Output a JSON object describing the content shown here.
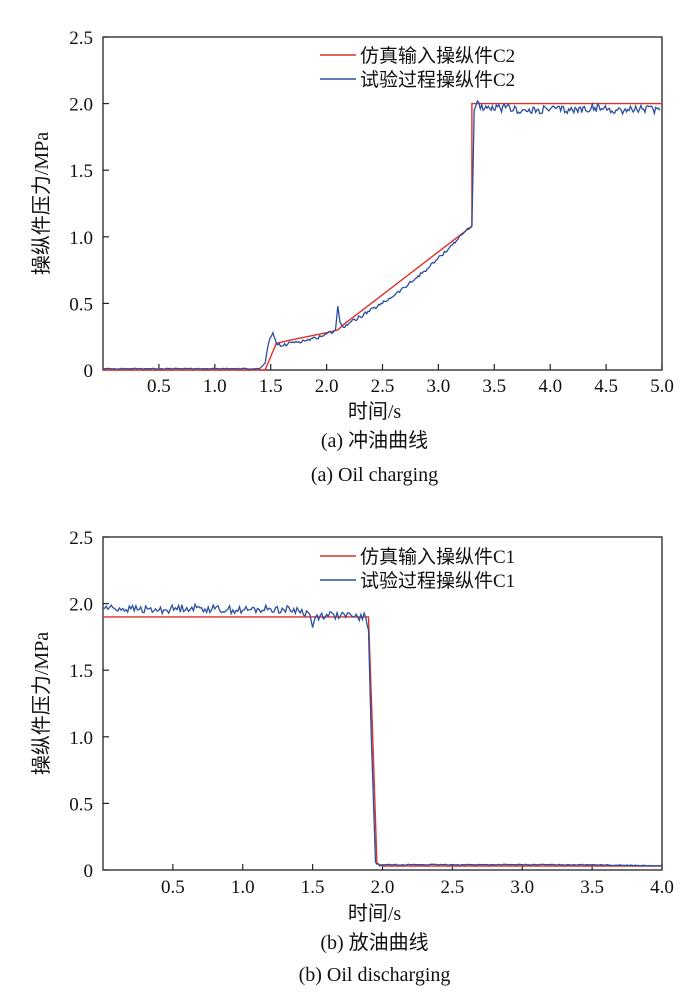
{
  "chart_data": [
    {
      "type": "line",
      "xlabel": "时间/s",
      "ylabel": "操纵件压力/MPa",
      "xlim": [
        0,
        5.0
      ],
      "ylim": [
        0,
        2.5
      ],
      "xticks": [
        "0.5",
        "1.0",
        "1.5",
        "2.0",
        "2.5",
        "3.0",
        "3.5",
        "4.0",
        "4.5",
        "5.0"
      ],
      "yticks": [
        "0",
        "0.5",
        "1.0",
        "1.5",
        "2.0",
        "2.5"
      ],
      "legend_position": "top-right",
      "caption_cn": "(a) 冲油曲线",
      "caption_en": "(a) Oil charging",
      "series": [
        {
          "name": "仿真输入操纵件C2",
          "color": "#e0302a",
          "x": [
            0,
            1.45,
            1.55,
            1.65,
            2.0,
            2.1,
            2.15,
            3.3,
            3.3,
            5.0
          ],
          "y": [
            0,
            0,
            0.2,
            0.22,
            0.28,
            0.3,
            0.34,
            1.08,
            2.0,
            2.0
          ]
        },
        {
          "name": "试验过程操纵件C2",
          "color": "#2a4fa0",
          "x": [
            0,
            1.4,
            1.45,
            1.48,
            1.52,
            1.55,
            1.6,
            1.7,
            1.8,
            1.9,
            2.0,
            2.08,
            2.1,
            2.12,
            2.15,
            2.2,
            2.3,
            2.5,
            2.7,
            2.9,
            3.1,
            3.25,
            3.3,
            3.32,
            3.35,
            3.4,
            3.6,
            3.8,
            4.0,
            4.2,
            4.4,
            4.6,
            4.8,
            4.98
          ],
          "y": [
            0.01,
            0.01,
            0.05,
            0.2,
            0.28,
            0.2,
            0.18,
            0.21,
            0.22,
            0.24,
            0.27,
            0.3,
            0.48,
            0.36,
            0.32,
            0.35,
            0.4,
            0.5,
            0.62,
            0.76,
            0.92,
            1.05,
            1.08,
            1.95,
            2.02,
            1.95,
            1.97,
            1.94,
            1.96,
            1.95,
            1.97,
            1.95,
            1.96,
            1.95
          ]
        }
      ]
    },
    {
      "type": "line",
      "xlabel": "时间/s",
      "ylabel": "操纵件压力/MPa",
      "xlim": [
        0,
        4.0
      ],
      "ylim": [
        0,
        2.5
      ],
      "xticks": [
        "0.5",
        "1.0",
        "1.5",
        "2.0",
        "2.5",
        "3.0",
        "3.5",
        "4.0"
      ],
      "yticks": [
        "0",
        "0.5",
        "1.0",
        "1.5",
        "2.0",
        "2.5"
      ],
      "legend_position": "top-right",
      "caption_cn": "(b) 放油曲线",
      "caption_en": "(b) Oil discharging",
      "series": [
        {
          "name": "仿真输入操纵件C1",
          "color": "#e0302a",
          "x": [
            0,
            1.9,
            1.93,
            1.96,
            2.0,
            4.0
          ],
          "y": [
            1.9,
            1.9,
            1.0,
            0.05,
            0.03,
            0.03
          ]
        },
        {
          "name": "试验过程操纵件C1",
          "color": "#2a4fa0",
          "x": [
            0,
            0.2,
            0.4,
            0.6,
            0.8,
            1.0,
            1.2,
            1.4,
            1.48,
            1.5,
            1.52,
            1.6,
            1.7,
            1.8,
            1.88,
            1.9,
            1.92,
            1.95,
            1.98,
            2.0,
            2.5,
            3.0,
            3.5,
            4.0
          ],
          "y": [
            1.97,
            1.96,
            1.95,
            1.97,
            1.96,
            1.95,
            1.96,
            1.95,
            1.92,
            1.82,
            1.9,
            1.92,
            1.91,
            1.9,
            1.9,
            1.8,
            1.0,
            0.06,
            0.03,
            0.04,
            0.04,
            0.04,
            0.04,
            0.03
          ]
        }
      ]
    }
  ]
}
